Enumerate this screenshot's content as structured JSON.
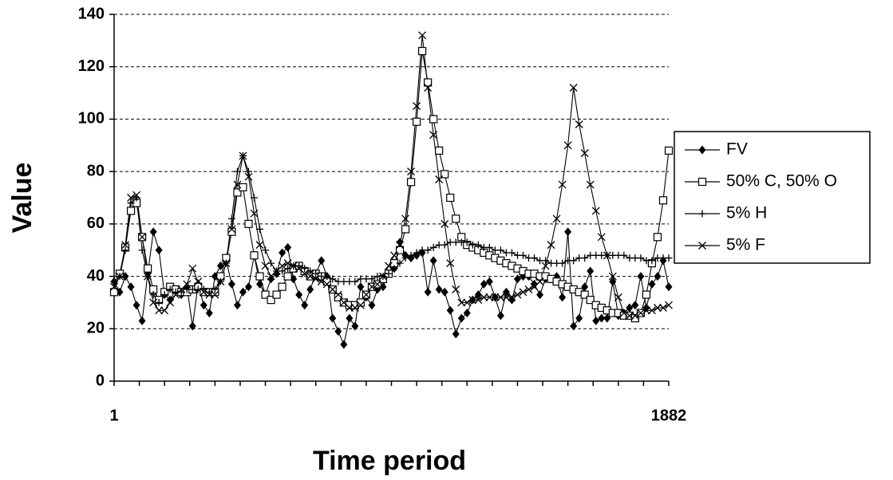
{
  "chart_data": {
    "type": "line",
    "x_label": "Time period",
    "y_label": "Value",
    "categories": [
      "1",
      null,
      null,
      null,
      null,
      null,
      null,
      null,
      null,
      null,
      null,
      null,
      null,
      null,
      null,
      null,
      null,
      null,
      null,
      null,
      null,
      null,
      null,
      null,
      null,
      null,
      null,
      null,
      null,
      null,
      null,
      null,
      null,
      null,
      null,
      null,
      null,
      null,
      null,
      null,
      null,
      null,
      null,
      null,
      null,
      null,
      null,
      null,
      null,
      null,
      null,
      null,
      null,
      null,
      null,
      null,
      null,
      null,
      null,
      null,
      null,
      null,
      null,
      null,
      null,
      null,
      null,
      null,
      null,
      null,
      null,
      null,
      null,
      null,
      null,
      null,
      null,
      null,
      null,
      null,
      null,
      null,
      null,
      null,
      null,
      null,
      null,
      null,
      null,
      null,
      null,
      null,
      null,
      null,
      null,
      null,
      null,
      null,
      null,
      "1882"
    ],
    "ylim": [
      0,
      140
    ],
    "yticks": [
      0,
      20,
      40,
      60,
      80,
      100,
      120,
      140
    ],
    "grid": true,
    "series": [
      {
        "name": "FV",
        "color": "#000000",
        "marker": "diamond",
        "values": [
          38,
          34,
          40,
          36,
          29,
          23,
          41,
          57,
          50,
          33,
          31,
          35,
          33,
          36,
          21,
          37,
          29,
          26,
          40,
          44,
          46,
          37,
          29,
          34,
          36,
          48,
          37,
          33,
          39,
          41,
          49,
          51,
          39,
          33,
          29,
          35,
          41,
          46,
          40,
          24,
          19,
          14,
          24,
          21,
          36,
          32,
          29,
          35,
          36,
          41,
          43,
          53,
          48,
          47,
          48,
          49,
          34,
          46,
          35,
          34,
          27,
          18,
          24,
          26,
          31,
          33,
          37,
          38,
          32,
          25,
          34,
          31,
          39,
          40,
          40,
          37,
          33,
          39,
          39,
          40,
          32,
          57,
          21,
          24,
          36,
          42,
          23,
          24,
          24,
          38,
          25,
          26,
          28,
          29,
          40,
          28,
          37,
          40,
          46,
          36
        ]
      },
      {
        "name": "50% C, 50% O",
        "color": "#000000",
        "marker": "square",
        "values": [
          34,
          41,
          51,
          65,
          68,
          55,
          43,
          35,
          31,
          34,
          36,
          35,
          34,
          34,
          35,
          36,
          34,
          34,
          34,
          40,
          47,
          57,
          72,
          74,
          60,
          48,
          40,
          33,
          31,
          33,
          36,
          40,
          43,
          44,
          42,
          40,
          41,
          40,
          38,
          35,
          32,
          30,
          29,
          29,
          30,
          33,
          36,
          37,
          39,
          41,
          45,
          50,
          58,
          76,
          99,
          126,
          114,
          100,
          88,
          79,
          70,
          62,
          55,
          52,
          51,
          50,
          49,
          48,
          47,
          46,
          45,
          44,
          43,
          42,
          41,
          41,
          40,
          40,
          39,
          38,
          37,
          36,
          35,
          34,
          33,
          31,
          29,
          28,
          27,
          26,
          26,
          25,
          25,
          24,
          26,
          33,
          45,
          55,
          69,
          88
        ]
      },
      {
        "name": "5% H",
        "color": "#000000",
        "marker": "plus",
        "values": [
          38,
          40,
          50,
          68,
          70,
          50,
          40,
          33,
          30,
          33,
          35,
          34,
          34,
          35,
          35,
          35,
          35,
          34,
          35,
          38,
          45,
          62,
          80,
          86,
          80,
          70,
          58,
          50,
          45,
          42,
          42,
          43,
          44,
          44,
          43,
          42,
          41,
          40,
          40,
          39,
          38,
          38,
          38,
          38,
          39,
          39,
          39,
          40,
          40,
          41,
          43,
          45,
          47,
          48,
          49,
          50,
          50,
          51,
          52,
          52,
          53,
          53,
          53,
          53,
          52,
          52,
          51,
          51,
          50,
          50,
          49,
          49,
          48,
          48,
          47,
          47,
          46,
          46,
          45,
          45,
          45,
          46,
          46,
          47,
          47,
          48,
          48,
          48,
          48,
          48,
          48,
          48,
          47,
          47,
          47,
          46,
          46,
          47,
          47,
          47
        ]
      },
      {
        "name": "5% F",
        "color": "#000000",
        "marker": "cross",
        "values": [
          36,
          40,
          52,
          70,
          71,
          55,
          40,
          30,
          27,
          27,
          30,
          33,
          35,
          37,
          43,
          38,
          34,
          33,
          33,
          38,
          45,
          58,
          75,
          86,
          78,
          64,
          52,
          44,
          40,
          42,
          44,
          45,
          44,
          43,
          41,
          40,
          39,
          38,
          37,
          35,
          33,
          30,
          28,
          28,
          29,
          33,
          36,
          37,
          40,
          44,
          48,
          52,
          62,
          80,
          105,
          132,
          112,
          94,
          77,
          60,
          45,
          35,
          30,
          30,
          31,
          31,
          32,
          32,
          32,
          32,
          32,
          32,
          33,
          34,
          35,
          36,
          38,
          44,
          52,
          62,
          75,
          90,
          112,
          98,
          87,
          75,
          65,
          55,
          48,
          40,
          32,
          26,
          25,
          25,
          26,
          27,
          27,
          28,
          28,
          29
        ]
      }
    ]
  }
}
